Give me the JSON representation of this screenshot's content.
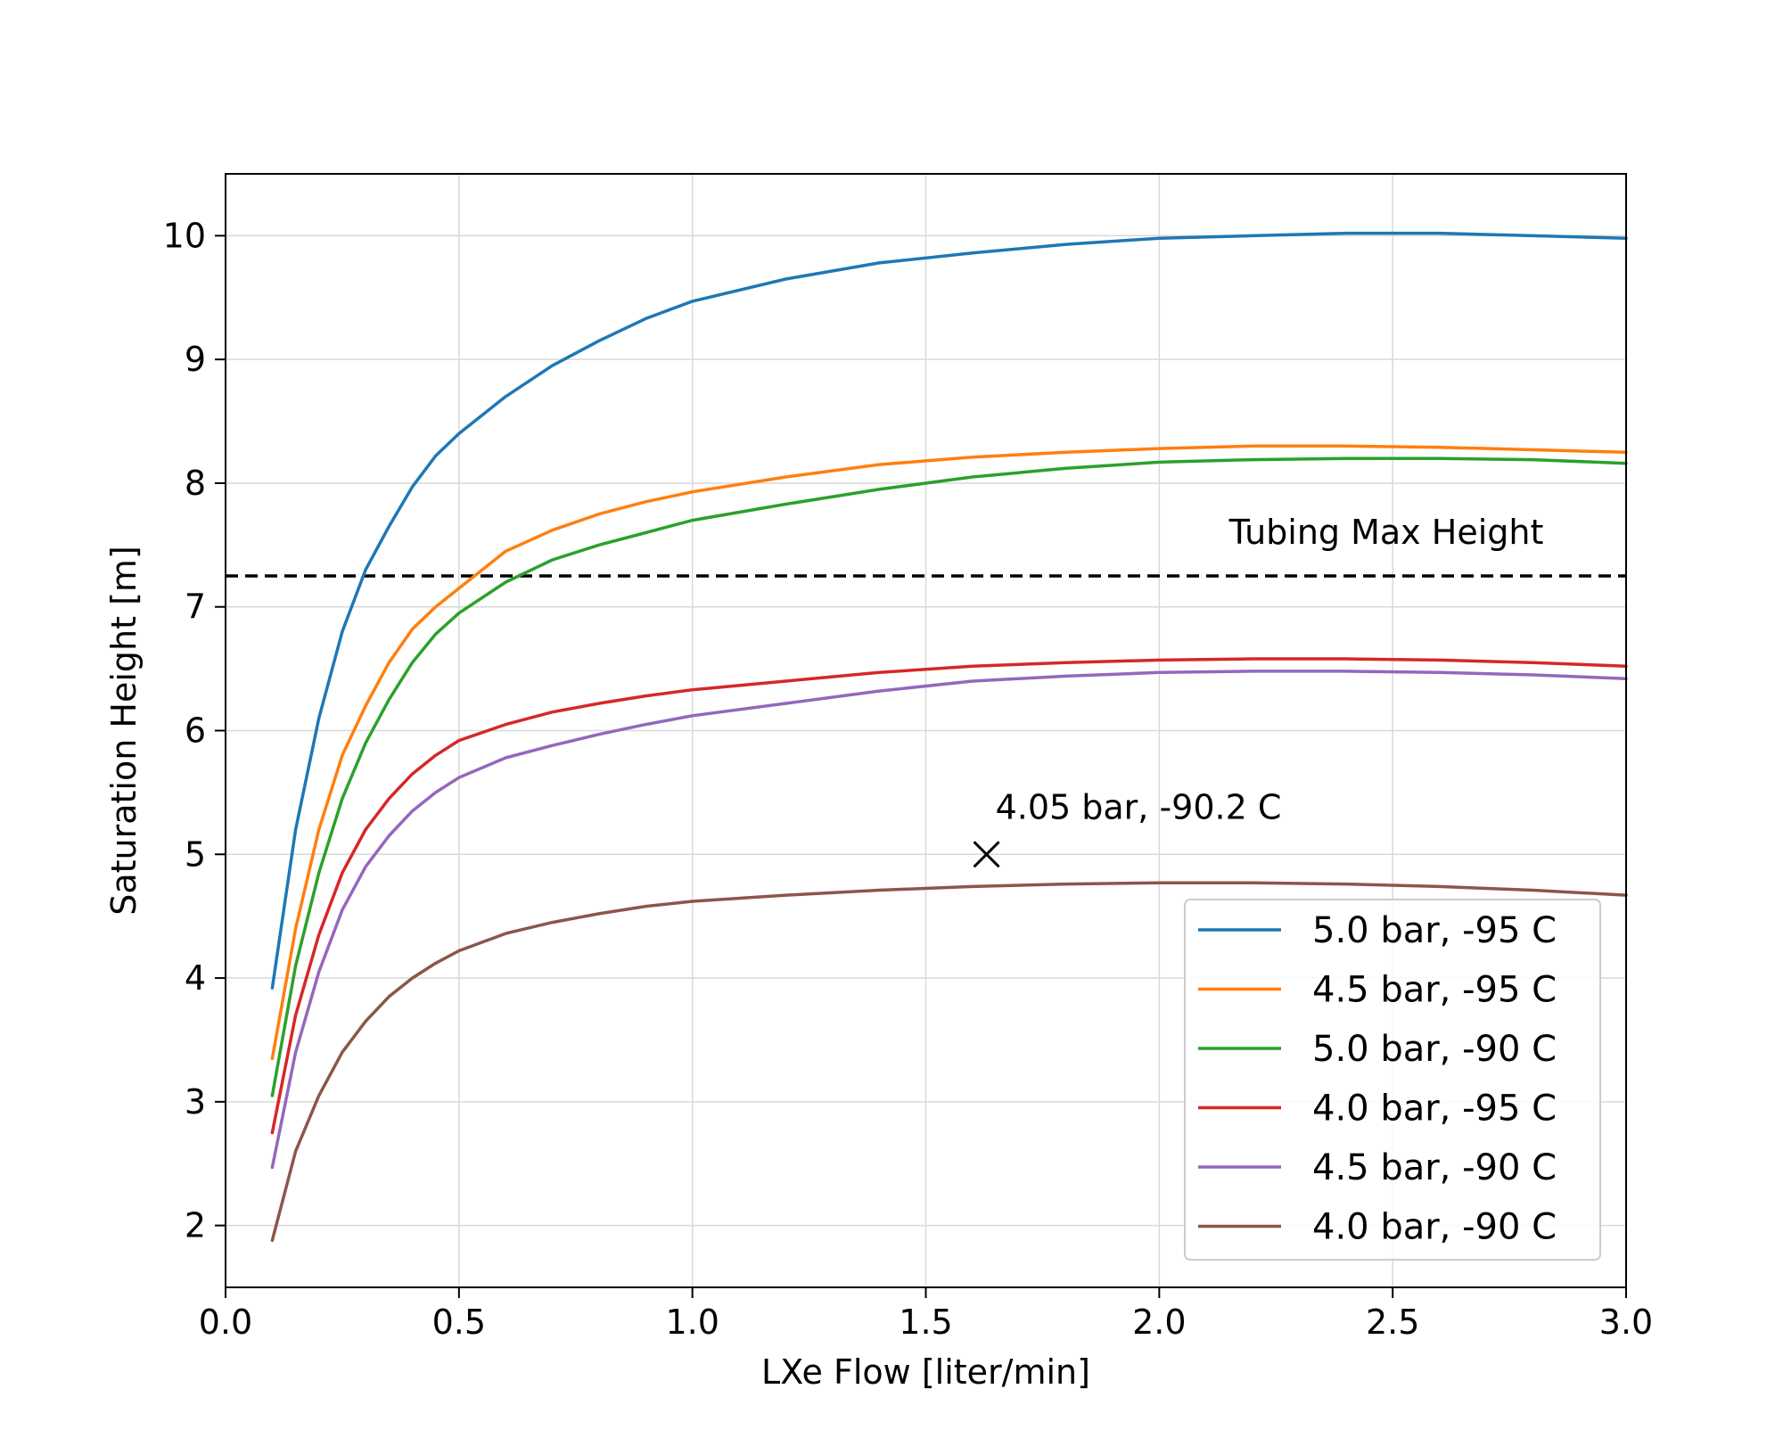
{
  "chart_data": {
    "type": "line",
    "xlabel": "LXe Flow [liter/min]",
    "ylabel": "Saturation Height [m]",
    "xlim": [
      0.0,
      3.0
    ],
    "ylim": [
      1.5,
      10.5
    ],
    "xticks": [
      0.0,
      0.5,
      1.0,
      1.5,
      2.0,
      2.5,
      3.0
    ],
    "xtick_labels": [
      "0.0",
      "0.5",
      "1.0",
      "1.5",
      "2.0",
      "2.5",
      "3.0"
    ],
    "yticks": [
      2,
      3,
      4,
      5,
      6,
      7,
      8,
      9,
      10
    ],
    "ytick_labels": [
      "2",
      "3",
      "4",
      "5",
      "6",
      "7",
      "8",
      "9",
      "10"
    ],
    "grid": true,
    "legend_position": "lower-right",
    "x": [
      0.1,
      0.15,
      0.2,
      0.25,
      0.3,
      0.35,
      0.4,
      0.45,
      0.5,
      0.6,
      0.7,
      0.8,
      0.9,
      1.0,
      1.2,
      1.4,
      1.6,
      1.8,
      2.0,
      2.2,
      2.4,
      2.6,
      2.8,
      3.0
    ],
    "series": [
      {
        "name": "5.0 bar, -95 C",
        "color": "#1f77b4",
        "values": [
          3.92,
          5.2,
          6.1,
          6.8,
          7.3,
          7.65,
          7.97,
          8.22,
          8.4,
          8.7,
          8.95,
          9.15,
          9.33,
          9.47,
          9.65,
          9.78,
          9.86,
          9.93,
          9.98,
          10.0,
          10.02,
          10.02,
          10.0,
          9.98
        ]
      },
      {
        "name": "4.5 bar, -95 C",
        "color": "#ff7f0e",
        "values": [
          3.35,
          4.4,
          5.2,
          5.8,
          6.2,
          6.55,
          6.82,
          7.0,
          7.15,
          7.45,
          7.62,
          7.75,
          7.85,
          7.93,
          8.05,
          8.15,
          8.21,
          8.25,
          8.28,
          8.3,
          8.3,
          8.29,
          8.27,
          8.25
        ]
      },
      {
        "name": "5.0 bar, -90 C",
        "color": "#2ca02c",
        "values": [
          3.05,
          4.1,
          4.85,
          5.45,
          5.9,
          6.25,
          6.55,
          6.78,
          6.95,
          7.2,
          7.38,
          7.5,
          7.6,
          7.7,
          7.83,
          7.95,
          8.05,
          8.12,
          8.17,
          8.19,
          8.2,
          8.2,
          8.19,
          8.16
        ]
      },
      {
        "name": "4.0 bar, -95 C",
        "color": "#d62728",
        "values": [
          2.75,
          3.7,
          4.35,
          4.85,
          5.2,
          5.45,
          5.65,
          5.8,
          5.92,
          6.05,
          6.15,
          6.22,
          6.28,
          6.33,
          6.4,
          6.47,
          6.52,
          6.55,
          6.57,
          6.58,
          6.58,
          6.57,
          6.55,
          6.52
        ]
      },
      {
        "name": "4.5 bar, -90 C",
        "color": "#9467bd",
        "values": [
          2.47,
          3.4,
          4.05,
          4.55,
          4.9,
          5.15,
          5.35,
          5.5,
          5.62,
          5.78,
          5.88,
          5.97,
          6.05,
          6.12,
          6.22,
          6.32,
          6.4,
          6.44,
          6.47,
          6.48,
          6.48,
          6.47,
          6.45,
          6.42
        ]
      },
      {
        "name": "4.0 bar, -90 C",
        "color": "#8c564b",
        "values": [
          1.88,
          2.6,
          3.05,
          3.4,
          3.65,
          3.85,
          4.0,
          4.12,
          4.22,
          4.36,
          4.45,
          4.52,
          4.58,
          4.62,
          4.67,
          4.71,
          4.74,
          4.76,
          4.77,
          4.77,
          4.76,
          4.74,
          4.71,
          4.67
        ]
      }
    ],
    "reference_line": {
      "y": 7.25,
      "label": "Tubing Max Height",
      "style": "dashed"
    },
    "marker": {
      "x": 1.63,
      "y": 5.0,
      "symbol": "x",
      "label": "4.05 bar, -90.2 C"
    }
  }
}
